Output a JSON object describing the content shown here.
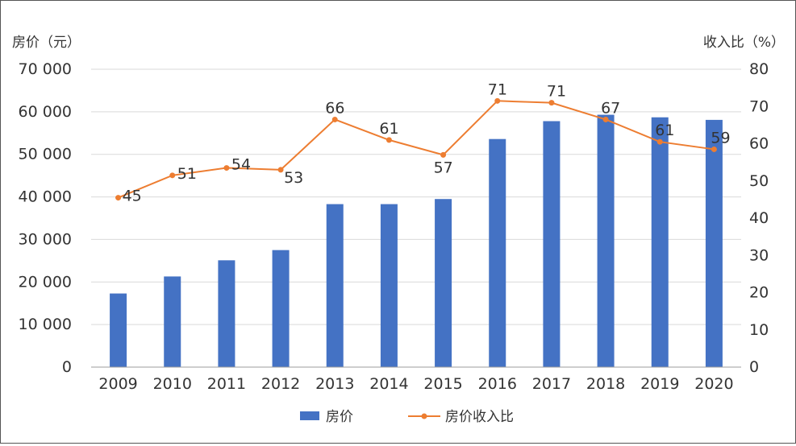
{
  "colors": {
    "bar": "#4472C4",
    "line": "#ED7D31",
    "axis": "#9E9E9E",
    "grid": "#D9D9D9",
    "text": "#333333"
  },
  "chart_data": {
    "type": "bar",
    "title": "",
    "categories": [
      "2009",
      "2010",
      "2011",
      "2012",
      "2013",
      "2014",
      "2015",
      "2016",
      "2017",
      "2018",
      "2019",
      "2020"
    ],
    "ylabel": "房价（元）",
    "y2label": "收入比（%）",
    "ylim": [
      0,
      70000
    ],
    "y2lim": [
      0,
      80
    ],
    "y_ticks": [
      "0",
      "10 000",
      "20 000",
      "30 000",
      "40 000",
      "50 000",
      "60 000",
      "70 000"
    ],
    "y2_ticks": [
      "0",
      "10",
      "20",
      "30",
      "40",
      "50",
      "60",
      "70",
      "80"
    ],
    "grid": true,
    "legend_position": "bottom",
    "series": [
      {
        "name": "房价",
        "type": "bar",
        "axis": "left",
        "values": [
          17300,
          21300,
          25100,
          27500,
          38300,
          38300,
          39500,
          53600,
          57800,
          59300,
          58700,
          58100
        ]
      },
      {
        "name": "房价收入比",
        "type": "line",
        "axis": "right",
        "values": [
          45.5,
          51.5,
          53.5,
          53,
          66.5,
          61,
          57,
          71.5,
          71,
          66.5,
          60.5,
          58.5
        ],
        "labels": [
          "45",
          "51",
          "54",
          "53",
          "66",
          "61",
          "57",
          "71",
          "71",
          "67",
          "61",
          "59"
        ]
      }
    ]
  }
}
